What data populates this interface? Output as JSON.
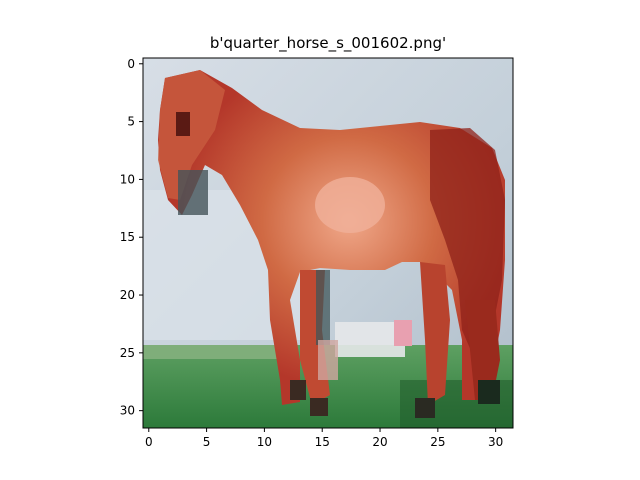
{
  "figure": {
    "title": "b'quarter_horse_s_001602.png'"
  },
  "image": {
    "subject": "horse",
    "grid": [
      32,
      32
    ]
  },
  "axes": {
    "x_ticks": [
      "0",
      "5",
      "10",
      "15",
      "20",
      "25",
      "30"
    ],
    "y_ticks": [
      "0",
      "5",
      "10",
      "15",
      "20",
      "25",
      "30"
    ]
  },
  "colors": {
    "sky": "#c9d6df",
    "sky_light": "#dfe6ea",
    "horse_red": "#b83a26",
    "horse_mid": "#c8553a",
    "horse_highlight": "#e88f6a",
    "horse_dark": "#7a1e16",
    "grass": "#3f8a45",
    "grass_dark": "#1f5a2a",
    "spot": "#e8a0b0"
  }
}
